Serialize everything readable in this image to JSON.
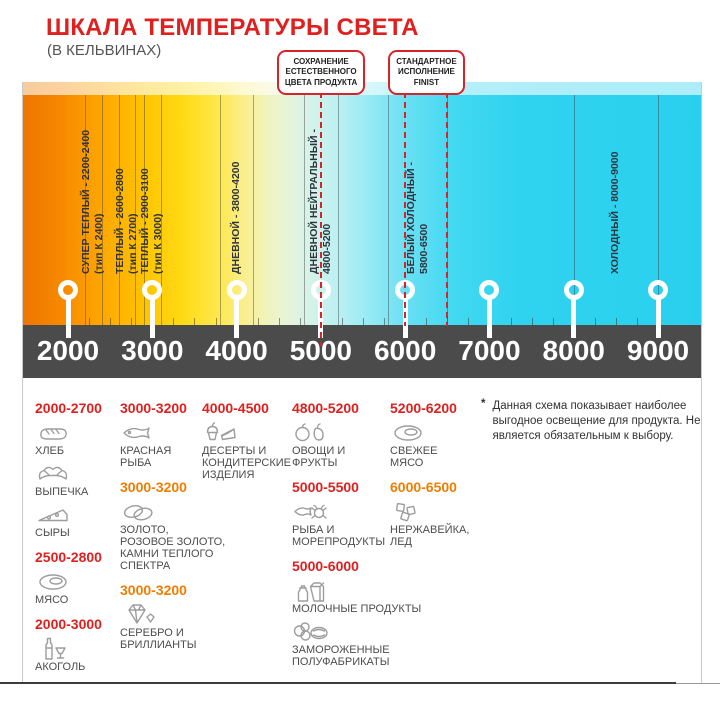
{
  "colors": {
    "red": "#e0201f",
    "orange": "#f07d00",
    "axis_bar": "#4b4b4b",
    "callout_border": "#d6242b",
    "gradient_left": "#ed7500",
    "gradient_right": "#29d0ee"
  },
  "header": {
    "title": "ШКАЛА ТЕМПЕРАТУРЫ СВЕТА",
    "subtitle": "(В КЕЛЬВИНАХ)"
  },
  "callouts": [
    {
      "name": "preserve-color-callout",
      "lines": [
        "СОХРАНЕНИЕ",
        "ЕСТЕСТВЕННОГО",
        "ЦВЕТА ПРОДУКТА"
      ],
      "marks_kelvin": [
        5000
      ]
    },
    {
      "name": "finist-standard-callout",
      "lines": [
        "СТАНДАРТНОЕ",
        "ИСПОЛНЕНИЕ",
        "FINIST"
      ],
      "marks_kelvin": [
        6000,
        6500
      ]
    }
  ],
  "scale": {
    "unit": "K",
    "min": 2000,
    "max": 9000,
    "ticks": [
      "2000",
      "3000",
      "4000",
      "5000",
      "6000",
      "7000",
      "8000",
      "9000"
    ],
    "zones": [
      {
        "label": "СУПЕР ТЕПЛЫЙ - 2200-2400",
        "sub": "(тип К 2400)",
        "from": 2200,
        "to": 2400
      },
      {
        "label": "ТЕПЛЫЙ - 2600-2800",
        "sub": "(тип К 2700)",
        "from": 2600,
        "to": 2800
      },
      {
        "label": "ТЕПЛЫЙ - 2900-3100",
        "sub": "(тип К 3000)",
        "from": 2900,
        "to": 3100
      },
      {
        "label": "ДНЕВНОЙ - 3800-4200",
        "sub": "",
        "from": 3800,
        "to": 4200
      },
      {
        "label": "ДНЕВНОЙ НЕЙТРАЛЬНЫЙ -",
        "sub": "4800-5200",
        "from": 4800,
        "to": 5200
      },
      {
        "label": "БЕЛЫЙ ХОЛОДНЫЙ -",
        "sub": "5800-6500",
        "from": 5800,
        "to": 6500
      },
      {
        "label": "ХОЛОДНЫЙ - 8000-9000",
        "sub": "",
        "from": 8000,
        "to": 9000
      }
    ]
  },
  "recommendations": {
    "columns": [
      {
        "entries": [
          {
            "type": "range",
            "value": "2000-2700",
            "color": "red"
          },
          {
            "type": "item",
            "icon": "bread-icon",
            "label": "ХЛЕБ"
          },
          {
            "type": "item",
            "icon": "croissant-icon",
            "label": "ВЫПЕЧКА"
          },
          {
            "type": "item",
            "icon": "cheese-icon",
            "label": "СЫРЫ"
          },
          {
            "type": "range",
            "value": "2500-2800",
            "color": "red"
          },
          {
            "type": "item",
            "icon": "meat-icon",
            "label": "МЯСО"
          },
          {
            "type": "range",
            "value": "2000-3000",
            "color": "red"
          },
          {
            "type": "item",
            "icon": "alcohol-icon",
            "label": "АКОГОЛЬ"
          }
        ]
      },
      {
        "entries": [
          {
            "type": "range",
            "value": "3000-3200",
            "color": "red"
          },
          {
            "type": "item",
            "icon": "fish-icon",
            "label": "КРАСНАЯ\nРЫБА"
          },
          {
            "type": "range",
            "value": "3000-3200",
            "color": "orange"
          },
          {
            "type": "item",
            "icon": "rings-icon",
            "label": "ЗОЛОТО,\nРОЗОВОЕ ЗОЛОТО,\nКАМНИ ТЕПЛОГО\nСПЕКТРА"
          },
          {
            "type": "range",
            "value": "3000-3200",
            "color": "orange"
          },
          {
            "type": "item",
            "icon": "diamond-icon",
            "label": "СЕРЕБРО И\nБРИЛЛИАНТЫ"
          }
        ]
      },
      {
        "entries": [
          {
            "type": "range",
            "value": "4000-4500",
            "color": "red"
          },
          {
            "type": "item",
            "icon": "dessert-icon",
            "label": "ДЕСЕРТЫ И\nКОНДИТЕРСКИЕ\nИЗДЕЛИЯ"
          }
        ]
      },
      {
        "entries": [
          {
            "type": "range",
            "value": "4800-5200",
            "color": "red"
          },
          {
            "type": "item",
            "icon": "fruits-icon",
            "label": "ОВОЩИ И\nФРУКТЫ"
          },
          {
            "type": "range",
            "value": "5000-5500",
            "color": "red"
          },
          {
            "type": "item",
            "icon": "seafood-icon",
            "label": "РЫБА И\nМОРЕПРОДУКТЫ"
          },
          {
            "type": "range",
            "value": "5000-6000",
            "color": "red"
          },
          {
            "type": "item",
            "icon": "milk-icon",
            "label": "МОЛОЧНЫЕ ПРОДУКТЫ"
          },
          {
            "type": "item",
            "icon": "frozen-icon",
            "label": "ЗАМОРОЖЕННЫЕ\nПОЛУФАБРИКАТЫ"
          }
        ]
      },
      {
        "entries": [
          {
            "type": "range",
            "value": "5200-6200",
            "color": "red"
          },
          {
            "type": "item",
            "icon": "fresh-meat-icon",
            "label": "СВЕЖЕЕ\nМЯСО"
          },
          {
            "type": "range",
            "value": "6000-6500",
            "color": "orange"
          },
          {
            "type": "item",
            "icon": "ice-icon",
            "label": "НЕРЖАВЕЙКА,\nЛЕД"
          }
        ]
      }
    ]
  },
  "note": {
    "marker": "*",
    "text": "Данная схема показывает наиболее выгодное освещение для продукта. Не является обязательным к выбору."
  }
}
